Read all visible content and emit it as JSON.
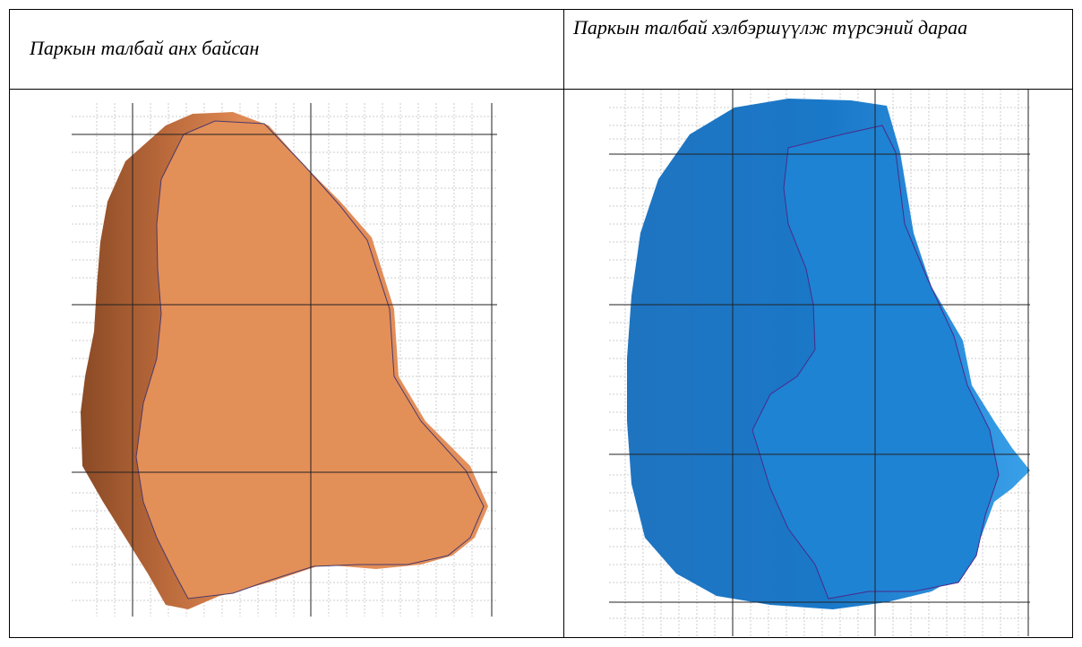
{
  "table": {
    "rows": [
      [
        "Паркын талбай анх байсан",
        "Паркын талбай хэлбэршүүлж түрсэний дараа"
      ]
    ]
  }
}
